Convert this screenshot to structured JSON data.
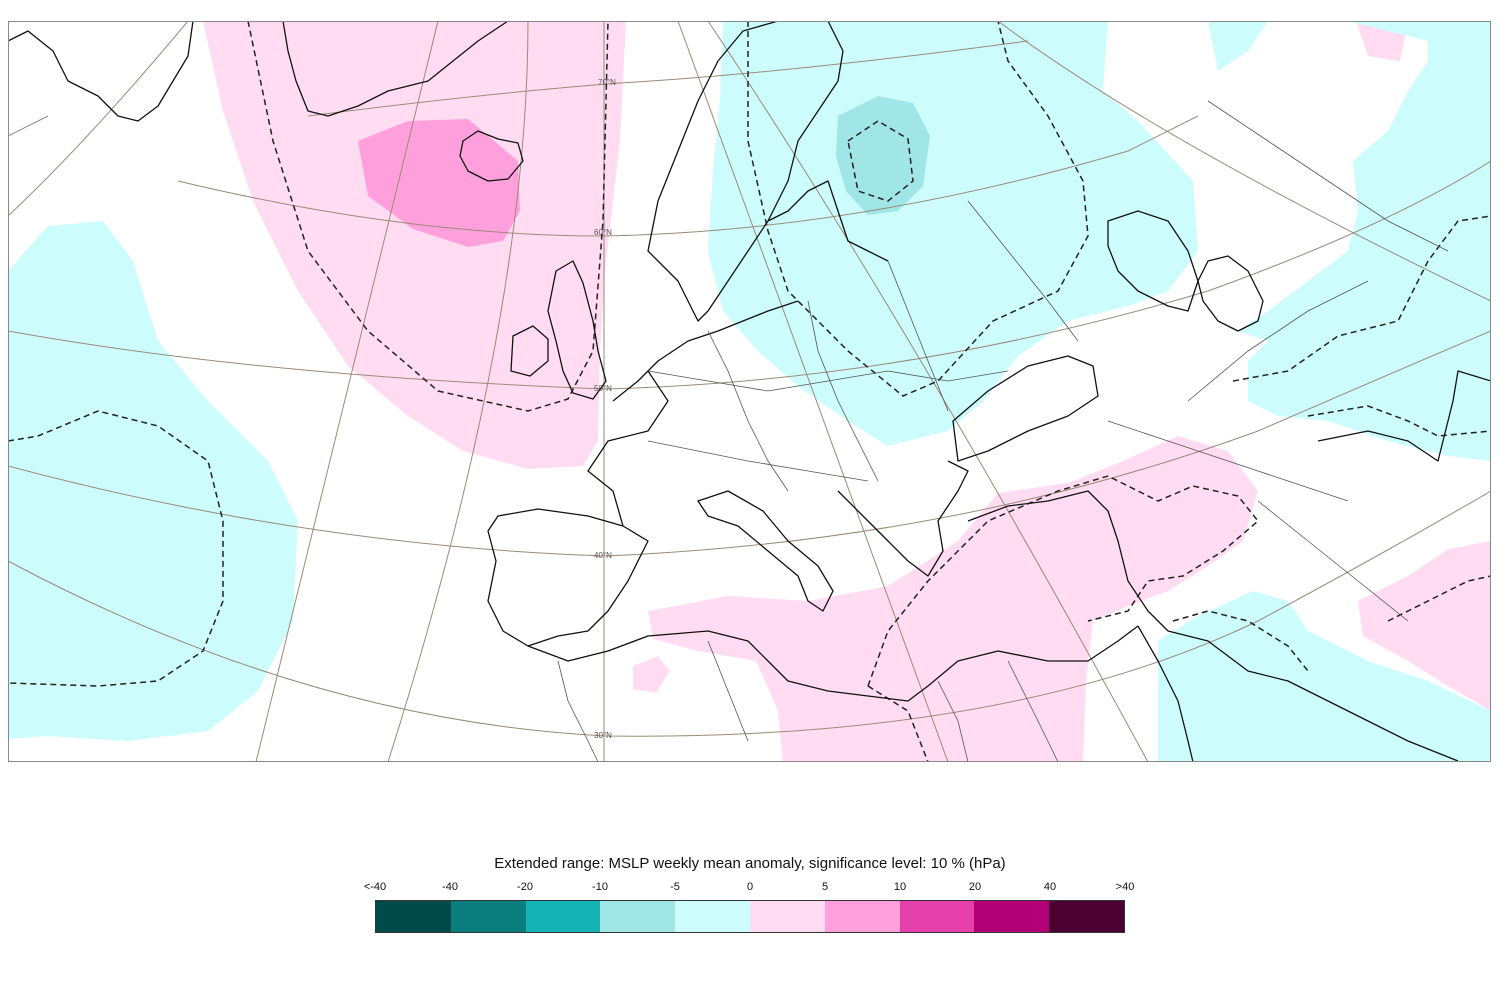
{
  "legend": {
    "title": "Extended range: MSLP weekly mean anomaly, significance level: 10 % (hPa)",
    "labels": [
      "<-40",
      "-40",
      "-20",
      "-10",
      "-5",
      "0",
      "5",
      "10",
      "20",
      "40",
      ">40"
    ],
    "colors": [
      "#004a4a",
      "#0a7d7d",
      "#14b4b4",
      "#a0e6e6",
      "#ccfcfc",
      "#ffdcf2",
      "#ffa0dc",
      "#e641aa",
      "#b40078",
      "#4b0032"
    ]
  },
  "map": {
    "lat_labels": [
      "70°N",
      "60°N",
      "50°N",
      "40°N",
      "30°N"
    ],
    "anomaly_colors": {
      "negative_weak": "#ccfcfc",
      "negative_moderate": "#a0e6e6",
      "positive_weak": "#ffdcf2",
      "positive_moderate": "#ffa0dc"
    }
  }
}
